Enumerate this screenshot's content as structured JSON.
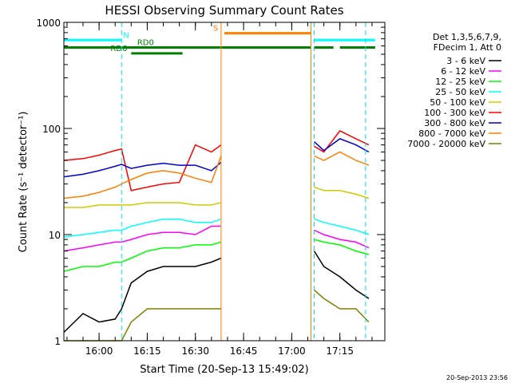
{
  "chart_data": {
    "type": "line",
    "title": "HESSI Observing Summary Count Rates",
    "xlabel": "Start Time (20-Sep-13 15:49:02)",
    "ylabel": "Count Rate (s⁻¹ detector⁻¹)",
    "yscale": "log",
    "ylim": [
      1,
      1000
    ],
    "xlim": [
      "15:49:02",
      "17:29:00"
    ],
    "x_ticks": [
      "16:00",
      "16:15",
      "16:30",
      "16:45",
      "17:00",
      "17:15"
    ],
    "y_ticks": [
      "1",
      "10",
      "100",
      "1000"
    ],
    "grid": false,
    "legend_position": "right",
    "legend_header": [
      "Det 1,3,5,6,7,9,",
      "FDecim 1, Att 0"
    ],
    "timestamp": "20-Sep-2013 23:56",
    "data_gaps": [
      {
        "start": "16:38",
        "end": "17:07"
      }
    ],
    "vertical_markers": [
      {
        "time": "16:07",
        "color": "#00e5e5",
        "style": "dashed"
      },
      {
        "time": "17:07",
        "color": "#00e5e5",
        "style": "dashed"
      },
      {
        "time": "17:23",
        "color": "#00e5e5",
        "style": "dashed"
      },
      {
        "time": "16:38",
        "color": "#ff7f00",
        "style": "solid"
      },
      {
        "time": "17:06",
        "color": "#ff7f00",
        "style": "solid"
      }
    ],
    "flag_bars": [
      {
        "label": "N",
        "color": "#00ffff",
        "level": 680,
        "segments": [
          [
            "15:49",
            "16:07"
          ],
          [
            "17:07",
            "17:26"
          ]
        ]
      },
      {
        "label": "S",
        "color": "#ff7f00",
        "level": 790,
        "segments": [
          [
            "16:39",
            "17:06"
          ]
        ]
      },
      {
        "label": "RD0",
        "color": "#008000",
        "level": 580,
        "segments": [
          [
            "15:49",
            "16:38"
          ],
          [
            "16:38",
            "17:06"
          ],
          [
            "17:07",
            "17:13"
          ],
          [
            "17:15",
            "17:26"
          ]
        ]
      },
      {
        "label": "RD6",
        "color": "#008000",
        "level": 510,
        "segments": [
          [
            "16:10",
            "16:26"
          ]
        ]
      }
    ],
    "series": [
      {
        "name": "3 - 6 keV",
        "color": "#000000",
        "x": [
          "15:49",
          "15:55",
          "16:00",
          "16:05",
          "16:07",
          "16:10",
          "16:15",
          "16:20",
          "16:25",
          "16:30",
          "16:35",
          "16:38",
          "17:07",
          "17:10",
          "17:15",
          "17:20",
          "17:24"
        ],
        "values": [
          1.2,
          1.8,
          1.5,
          1.6,
          2,
          3.5,
          4.5,
          5,
          5,
          5,
          5.5,
          6,
          7,
          5,
          4,
          3,
          2.5
        ]
      },
      {
        "name": "6 - 12 keV",
        "color": "#ff00ff",
        "x": [
          "15:49",
          "15:55",
          "16:00",
          "16:05",
          "16:07",
          "16:10",
          "16:15",
          "16:20",
          "16:25",
          "16:30",
          "16:35",
          "16:38",
          "17:07",
          "17:10",
          "17:15",
          "17:20",
          "17:24"
        ],
        "values": [
          7,
          7.5,
          8,
          8.5,
          8.5,
          9,
          10,
          10.5,
          10.5,
          10,
          12,
          12,
          11,
          10,
          9,
          8.5,
          7.5
        ]
      },
      {
        "name": "12 - 25 keV",
        "color": "#00ff00",
        "x": [
          "15:49",
          "15:55",
          "16:00",
          "16:05",
          "16:07",
          "16:10",
          "16:15",
          "16:20",
          "16:25",
          "16:30",
          "16:35",
          "16:38",
          "17:07",
          "17:10",
          "17:15",
          "17:20",
          "17:24"
        ],
        "values": [
          4.5,
          5,
          5,
          5.5,
          5.5,
          6,
          7,
          7.5,
          7.5,
          8,
          8,
          8.5,
          9,
          8.5,
          8,
          7,
          6.5
        ]
      },
      {
        "name": "25 - 50 keV",
        "color": "#00ffff",
        "x": [
          "15:49",
          "15:55",
          "16:00",
          "16:05",
          "16:07",
          "16:10",
          "16:15",
          "16:20",
          "16:25",
          "16:30",
          "16:35",
          "16:38",
          "17:07",
          "17:10",
          "17:15",
          "17:20",
          "17:24"
        ],
        "values": [
          9.5,
          10,
          10.5,
          11,
          11,
          12,
          13,
          14,
          14,
          13,
          13,
          14,
          14,
          13,
          12,
          11,
          10
        ]
      },
      {
        "name": "50 - 100 keV",
        "color": "#cccc00",
        "x": [
          "15:49",
          "15:55",
          "16:00",
          "16:05",
          "16:07",
          "16:10",
          "16:15",
          "16:20",
          "16:25",
          "16:30",
          "16:35",
          "16:38",
          "17:07",
          "17:10",
          "17:15",
          "17:20",
          "17:24"
        ],
        "values": [
          18,
          18,
          19,
          19,
          19,
          19,
          20,
          20,
          20,
          19,
          19,
          20,
          28,
          26,
          26,
          24,
          22
        ]
      },
      {
        "name": "100 - 300 keV",
        "color": "#ff0000",
        "x": [
          "15:49",
          "15:55",
          "16:00",
          "16:05",
          "16:07",
          "16:10",
          "16:15",
          "16:20",
          "16:25",
          "16:30",
          "16:35",
          "16:38",
          "17:07",
          "17:10",
          "17:15",
          "17:20",
          "17:24"
        ],
        "values": [
          50,
          52,
          56,
          62,
          64,
          26,
          28,
          30,
          31,
          70,
          60,
          70,
          68,
          60,
          95,
          80,
          70
        ]
      },
      {
        "name": "300 - 800 keV",
        "color": "#0000cc",
        "x": [
          "15:49",
          "15:55",
          "16:00",
          "16:05",
          "16:07",
          "16:10",
          "16:15",
          "16:20",
          "16:25",
          "16:30",
          "16:35",
          "16:38",
          "17:07",
          "17:10",
          "17:15",
          "17:20",
          "17:24"
        ],
        "values": [
          35,
          37,
          40,
          44,
          46,
          42,
          45,
          47,
          45,
          45,
          40,
          48,
          75,
          62,
          80,
          70,
          60
        ]
      },
      {
        "name": "800 - 7000 keV",
        "color": "#ff7f00",
        "x": [
          "15:49",
          "15:55",
          "16:00",
          "16:05",
          "16:07",
          "16:10",
          "16:15",
          "16:20",
          "16:25",
          "16:30",
          "16:35",
          "16:38",
          "17:07",
          "17:10",
          "17:15",
          "17:20",
          "17:24"
        ],
        "values": [
          22,
          23,
          25,
          28,
          30,
          33,
          38,
          40,
          38,
          34,
          31,
          55,
          55,
          50,
          60,
          50,
          45
        ]
      },
      {
        "name": "7000 - 20000 keV",
        "color": "#808000",
        "x": [
          "15:49",
          "15:55",
          "16:00",
          "16:05",
          "16:07",
          "16:10",
          "16:15",
          "16:20",
          "16:25",
          "16:30",
          "16:35",
          "16:38",
          "17:07",
          "17:10",
          "17:15",
          "17:20",
          "17:24"
        ],
        "values": [
          1,
          1,
          1,
          1,
          1,
          1.5,
          2,
          2,
          2,
          2,
          2,
          2,
          3,
          2.5,
          2,
          2,
          1.5
        ]
      }
    ]
  }
}
